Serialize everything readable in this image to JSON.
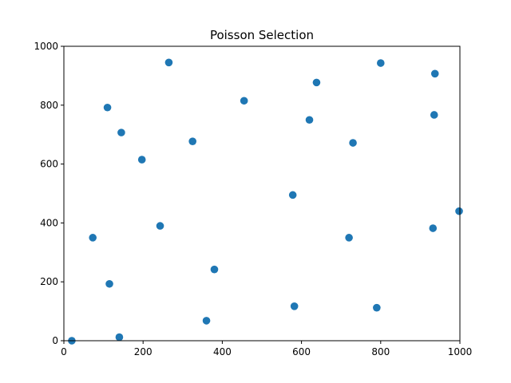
{
  "chart_data": {
    "type": "scatter",
    "title": "Poisson Selection",
    "xlabel": "",
    "ylabel": "",
    "xlim": [
      0,
      1000
    ],
    "ylim": [
      0,
      1000
    ],
    "grid": false,
    "x_ticks": [
      0,
      200,
      400,
      600,
      800,
      1000
    ],
    "y_ticks": [
      0,
      200,
      400,
      600,
      800,
      1000
    ],
    "series": [
      {
        "color": "#1f77b4",
        "points": [
          [
            20,
            0
          ],
          [
            140,
            12
          ],
          [
            360,
            68
          ],
          [
            582,
            117
          ],
          [
            790,
            112
          ],
          [
            115,
            193
          ],
          [
            380,
            242
          ],
          [
            73,
            350
          ],
          [
            243,
            390
          ],
          [
            720,
            350
          ],
          [
            932,
            382
          ],
          [
            998,
            440
          ],
          [
            578,
            495
          ],
          [
            197,
            615
          ],
          [
            325,
            677
          ],
          [
            730,
            672
          ],
          [
            145,
            707
          ],
          [
            110,
            792
          ],
          [
            455,
            815
          ],
          [
            620,
            750
          ],
          [
            935,
            767
          ],
          [
            638,
            877
          ],
          [
            265,
            945
          ],
          [
            800,
            943
          ],
          [
            937,
            907
          ]
        ]
      }
    ]
  }
}
